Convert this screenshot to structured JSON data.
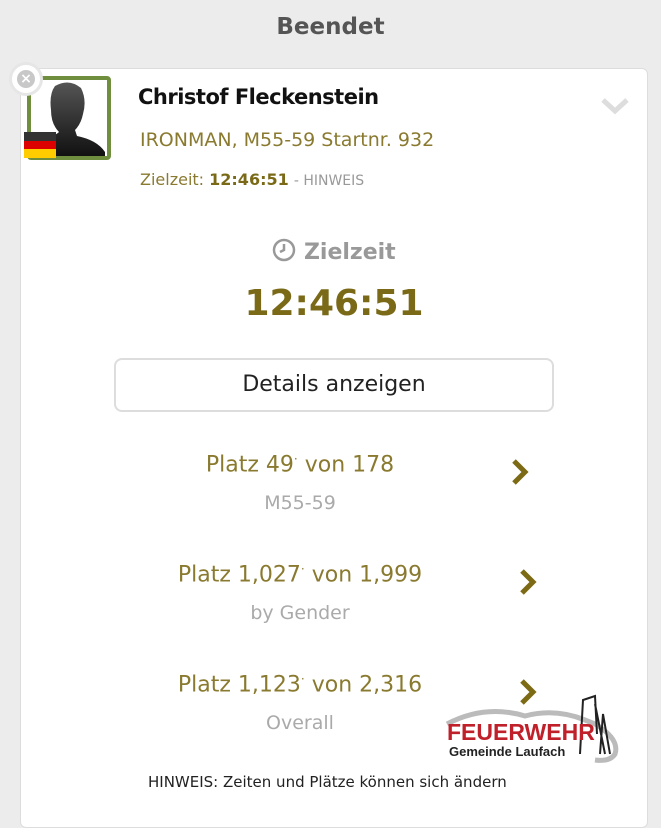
{
  "header": {
    "title": "Beendet"
  },
  "athlete": {
    "name": "Christof Fleckenstein",
    "info": "IRONMAN, M55-59 Startnr. 932",
    "finish_label": "Zielzeit:",
    "finish_time": "12:46:51",
    "hint_link": "- HINWEIS",
    "flag": "germany"
  },
  "result": {
    "label": "Zielzeit",
    "time": "12:46:51",
    "details_button": "Details anzeigen"
  },
  "ranks": [
    {
      "platz": "Platz",
      "pos": "49",
      "sep": "·",
      "von": "von",
      "total": "178",
      "category": "M55-59"
    },
    {
      "platz": "Platz",
      "pos": "1,027",
      "sep": "·",
      "von": "von",
      "total": "1,999",
      "category": "by Gender"
    },
    {
      "platz": "Platz",
      "pos": "1,123",
      "sep": "·",
      "von": "von",
      "total": "2,316",
      "category": "Overall"
    }
  ],
  "footer": {
    "hint": "HINWEIS: Zeiten und Plätze können sich ändern"
  },
  "watermark": {
    "line1": "FEUERWEHR",
    "line2": "Gemeinde Laufach"
  },
  "colors": {
    "accent": "#8a7a30",
    "accent_dark": "#7a6a18",
    "avatar_border": "#6f8f3f"
  }
}
